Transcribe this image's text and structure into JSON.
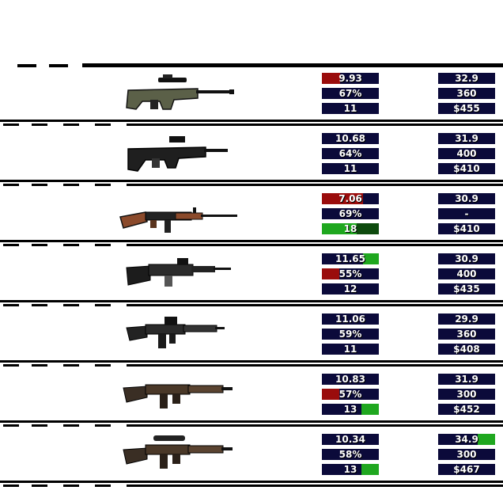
{
  "colors": {
    "cell_bg": "#0b0a3a",
    "worse": "#9a0c0c",
    "better": "#1fa71f",
    "text": "#ffffff",
    "separator": "#000000"
  },
  "weapons": [
    {
      "name": "olive-bullpup-rifle",
      "stats_left": [
        {
          "value": "9.93",
          "highlight": "worse",
          "fill": 0.32
        },
        {
          "value": "67%",
          "highlight": "",
          "fill": 0
        },
        {
          "value": "11",
          "highlight": "",
          "fill": 0
        }
      ],
      "stats_right": [
        {
          "value": "32.9",
          "highlight": "",
          "fill": 0
        },
        {
          "value": "360",
          "highlight": "",
          "fill": 0
        },
        {
          "value": "$455",
          "highlight": "",
          "fill": 0
        }
      ]
    },
    {
      "name": "black-bullpup-rifle",
      "stats_left": [
        {
          "value": "10.68",
          "highlight": "",
          "fill": 0
        },
        {
          "value": "64%",
          "highlight": "",
          "fill": 0
        },
        {
          "value": "11",
          "highlight": "",
          "fill": 0
        }
      ],
      "stats_right": [
        {
          "value": "31.9",
          "highlight": "",
          "fill": 0
        },
        {
          "value": "400",
          "highlight": "",
          "fill": 0
        },
        {
          "value": "$410",
          "highlight": "",
          "fill": 0
        }
      ]
    },
    {
      "name": "wood-battle-rifle",
      "stats_left": [
        {
          "value": "7.06",
          "highlight": "worse",
          "fill": 0.72
        },
        {
          "value": "69%",
          "highlight": "",
          "fill": 0
        },
        {
          "value": "18",
          "highlight": "better-full",
          "fill": 1
        }
      ],
      "stats_right": [
        {
          "value": "30.9",
          "highlight": "",
          "fill": 0
        },
        {
          "value": "-",
          "highlight": "",
          "fill": 0
        },
        {
          "value": "$410",
          "highlight": "",
          "fill": 0
        }
      ]
    },
    {
      "name": "black-battle-rifle",
      "stats_left": [
        {
          "value": "11.65",
          "highlight": "better",
          "fill": 0.28
        },
        {
          "value": "55%",
          "highlight": "worse",
          "fill": 0.3
        },
        {
          "value": "12",
          "highlight": "",
          "fill": 0
        }
      ],
      "stats_right": [
        {
          "value": "30.9",
          "highlight": "",
          "fill": 0
        },
        {
          "value": "400",
          "highlight": "",
          "fill": 0
        },
        {
          "value": "$435",
          "highlight": "",
          "fill": 0
        }
      ]
    },
    {
      "name": "black-carbine-rifle",
      "stats_left": [
        {
          "value": "11.06",
          "highlight": "",
          "fill": 0
        },
        {
          "value": "59%",
          "highlight": "",
          "fill": 0
        },
        {
          "value": "11",
          "highlight": "",
          "fill": 0
        }
      ],
      "stats_right": [
        {
          "value": "29.9",
          "highlight": "",
          "fill": 0
        },
        {
          "value": "360",
          "highlight": "",
          "fill": 0
        },
        {
          "value": "$408",
          "highlight": "",
          "fill": 0
        }
      ]
    },
    {
      "name": "brown-ar-rifle",
      "stats_left": [
        {
          "value": "10.83",
          "highlight": "",
          "fill": 0
        },
        {
          "value": "57%",
          "highlight": "worse",
          "fill": 0.3
        },
        {
          "value": "13",
          "highlight": "better",
          "fill": 0.3
        }
      ],
      "stats_right": [
        {
          "value": "31.9",
          "highlight": "",
          "fill": 0
        },
        {
          "value": "300",
          "highlight": "",
          "fill": 0
        },
        {
          "value": "$452",
          "highlight": "",
          "fill": 0
        }
      ]
    },
    {
      "name": "brown-scoped-rifle",
      "stats_left": [
        {
          "value": "10.34",
          "highlight": "",
          "fill": 0
        },
        {
          "value": "58%",
          "highlight": "",
          "fill": 0
        },
        {
          "value": "13",
          "highlight": "better",
          "fill": 0.3
        }
      ],
      "stats_right": [
        {
          "value": "34.9",
          "highlight": "better",
          "fill": 0.3
        },
        {
          "value": "300",
          "highlight": "",
          "fill": 0
        },
        {
          "value": "$467",
          "highlight": "",
          "fill": 0
        }
      ]
    }
  ]
}
